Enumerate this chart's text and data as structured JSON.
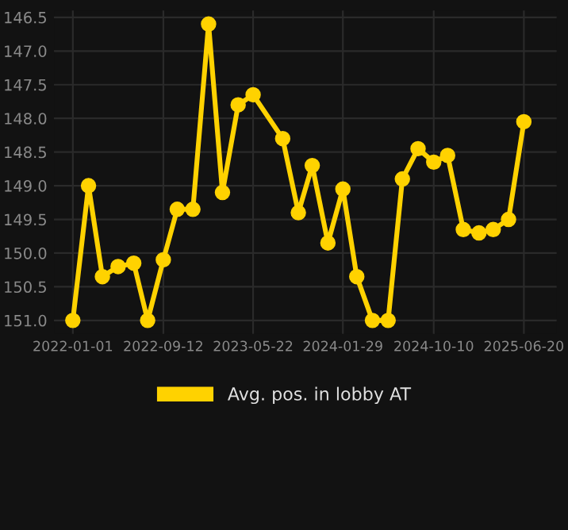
{
  "chart_data": {
    "type": "line",
    "x": [
      "2022-01-01",
      "2022-02-14",
      "2022-03-25",
      "2022-05-08",
      "2022-06-21",
      "2022-07-30",
      "2022-09-12",
      "2022-10-21",
      "2022-12-04",
      "2023-01-17",
      "2023-02-25",
      "2023-04-10",
      "2023-05-22",
      "2023-08-13",
      "2023-09-26",
      "2023-11-04",
      "2023-12-18",
      "2024-01-29",
      "2024-03-08",
      "2024-04-21",
      "2024-06-04",
      "2024-07-14",
      "2024-08-27",
      "2024-10-10",
      "2024-11-18",
      "2025-01-01",
      "2025-02-14",
      "2025-03-26",
      "2025-05-08",
      "2025-06-20"
    ],
    "series": [
      {
        "name": "Avg. pos. in lobby AT",
        "color": "#ffd200",
        "values": [
          151.0,
          149.0,
          150.35,
          150.2,
          150.15,
          151.0,
          150.1,
          149.35,
          149.35,
          146.6,
          149.1,
          147.8,
          147.65,
          148.3,
          149.4,
          148.7,
          149.85,
          149.05,
          150.35,
          151.0,
          151.0,
          148.9,
          148.45,
          148.65,
          148.55,
          149.65,
          149.7,
          149.65,
          149.5,
          148.05
        ]
      }
    ],
    "ylim": [
      151.2,
      146.4
    ],
    "yticks": [
      146.5,
      {
        "value": 147,
        "label": "147.0"
      },
      147.5,
      {
        "value": 148,
        "label": "148.0"
      },
      148.5,
      {
        "value": 149,
        "label": "149.0"
      },
      149.5,
      {
        "value": 150,
        "label": "150.0"
      },
      150.5,
      {
        "value": 151,
        "label": "151.0"
      }
    ],
    "xlim": [
      "2021-11-09",
      "2025-09-20"
    ],
    "xticks": [
      "2022-01-01",
      "2022-09-12",
      "2023-05-22",
      "2024-01-29",
      "2024-10-10",
      "2025-06-20"
    ],
    "grid": true,
    "legend": "bottom",
    "marker": "circle",
    "line_style": "solid"
  }
}
